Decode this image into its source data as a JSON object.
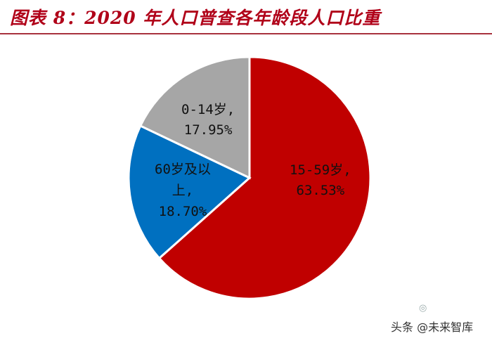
{
  "header": {
    "title": "图表 8：2020 年人口普查各年龄段人口比重"
  },
  "chart_data": {
    "type": "pie",
    "title": "",
    "start_angle_deg": 0,
    "direction": "clockwise",
    "slices": [
      {
        "label": "15-59岁,",
        "value": 63.53,
        "display": "63.53%",
        "color": "#c00000"
      },
      {
        "label": "60岁及以上,",
        "value": 18.7,
        "display": "18.70%",
        "color": "#0070c0"
      },
      {
        "label": "0-14岁,",
        "value": 17.95,
        "display": "17.95%",
        "color": "#a6a6a6"
      }
    ]
  },
  "watermark": {
    "text": "头条 @未来智库",
    "icon": "wechat-like-icon"
  }
}
